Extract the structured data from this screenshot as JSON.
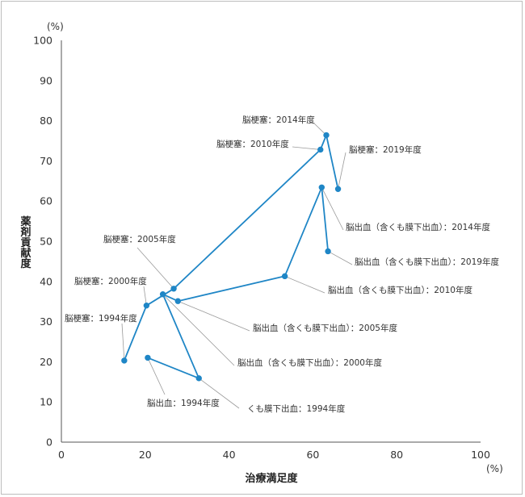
{
  "chart_data": {
    "type": "scatter",
    "title": "",
    "xlabel": "治療満足度",
    "ylabel": "薬剤貢献度",
    "x_unit": "(%)",
    "y_unit": "(%)",
    "xlim": [
      0,
      100
    ],
    "ylim": [
      0,
      100
    ],
    "x_ticks": [
      0,
      20,
      40,
      60,
      80,
      100
    ],
    "y_ticks": [
      0,
      10,
      20,
      30,
      40,
      50,
      60,
      70,
      80,
      90,
      100
    ],
    "grid": false,
    "line_color": "#1f86c6",
    "series": [
      {
        "disease": "脳梗塞",
        "points": [
          {
            "label": "脳梗塞：1994年度",
            "x": 15.0,
            "y": 20.3
          },
          {
            "label": "脳梗塞：2000年度",
            "x": 20.3,
            "y": 34.0
          },
          {
            "label": "脳梗塞：2005年度",
            "x": 26.8,
            "y": 38.2
          },
          {
            "label": "脳梗塞：2010年度",
            "x": 61.8,
            "y": 72.8
          },
          {
            "label": "脳梗塞：2014年度",
            "x": 63.2,
            "y": 76.4
          },
          {
            "label": "脳梗塞：2019年度",
            "x": 66.0,
            "y": 63.0
          }
        ]
      },
      {
        "disease": "脳出血（含くも膜下出血）",
        "points": [
          {
            "label": "脳出血：1994年度",
            "x": 20.6,
            "y": 21.0
          },
          {
            "label": "くも膜下出血：1994年度",
            "x": 32.8,
            "y": 15.9
          },
          {
            "label": "脳出血（含くも膜下出血）：2000年度",
            "x": 24.2,
            "y": 36.8
          },
          {
            "label": "脳出血（含くも膜下出血）：2005年度",
            "x": 27.8,
            "y": 35.1
          },
          {
            "label": "脳出血（含くも膜下出血）：2010年度",
            "x": 53.3,
            "y": 41.3
          },
          {
            "label": "脳出血（含くも膜下出血）：2014年度",
            "x": 62.1,
            "y": 63.4
          },
          {
            "label": "脳出血（含くも膜下出血）：2019年度",
            "x": 63.6,
            "y": 47.5
          }
        ]
      }
    ]
  }
}
